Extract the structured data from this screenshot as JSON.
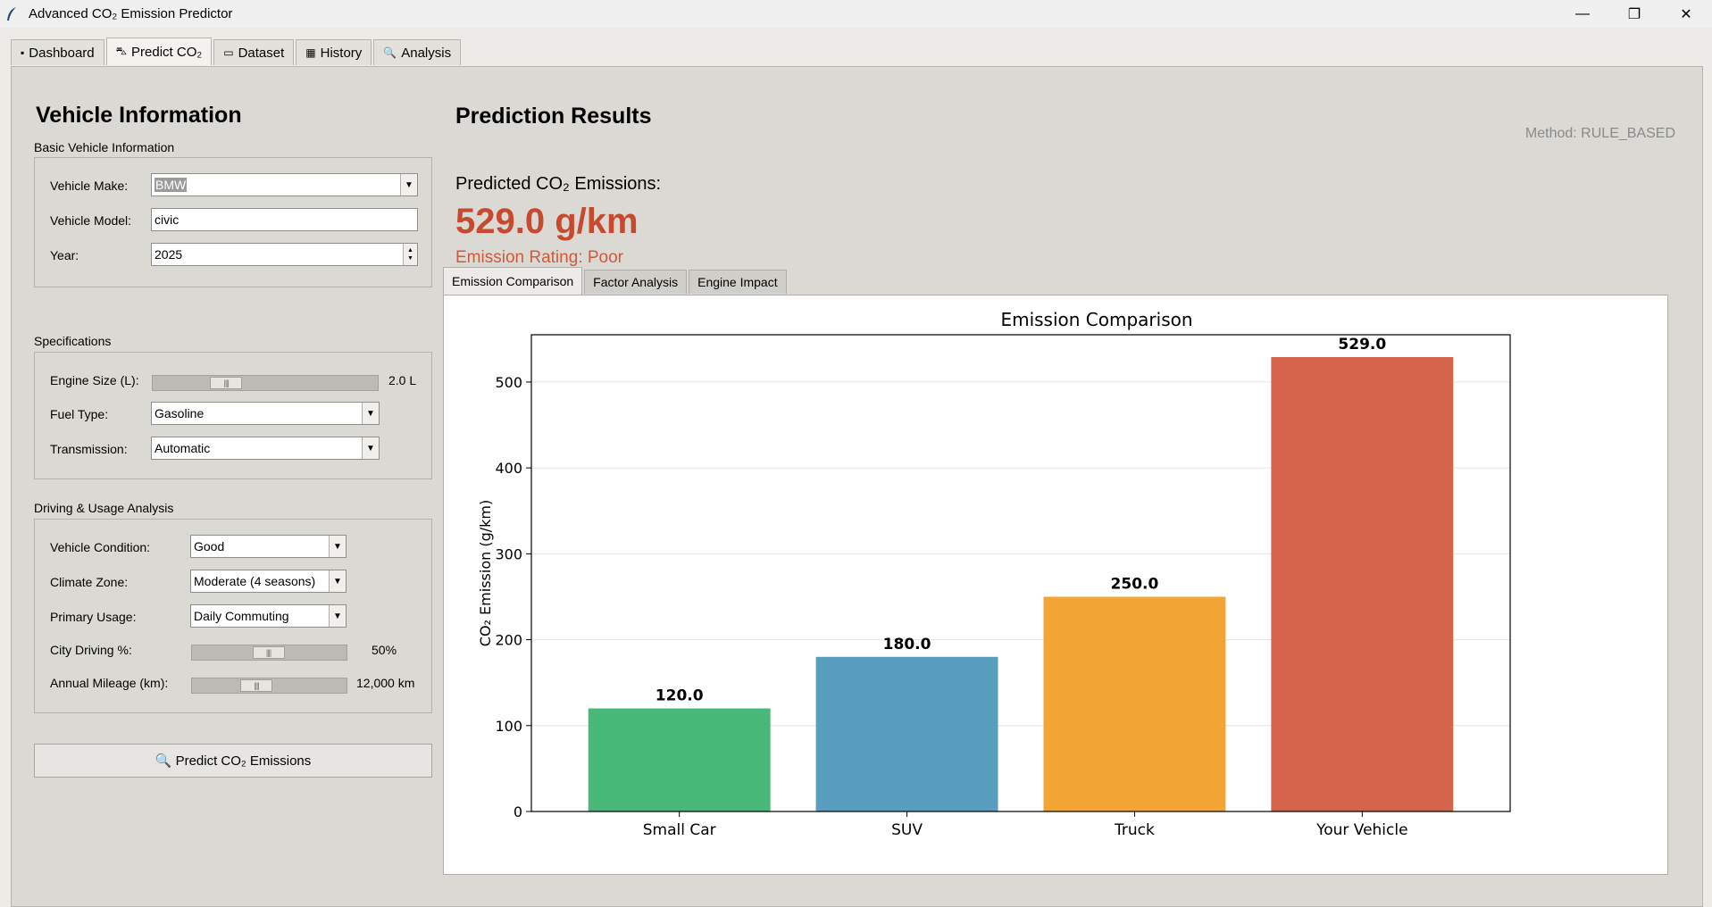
{
  "window": {
    "title": "Advanced CO₂ Emission Predictor",
    "minimize": "—",
    "restore": "❐",
    "close": "✕"
  },
  "main_tabs": [
    {
      "icon": "▪",
      "label": "Dashboard"
    },
    {
      "icon": "⛍",
      "label": "Predict CO₂"
    },
    {
      "icon": "▭",
      "label": "Dataset"
    },
    {
      "icon": "▦",
      "label": "History"
    },
    {
      "icon": "🔍",
      "label": "Analysis"
    }
  ],
  "vehicle_info": {
    "heading": "Vehicle Information",
    "basic": {
      "group_label": "Basic Vehicle Information",
      "make_label": "Vehicle Make:",
      "make_value": "BMW",
      "model_label": "Vehicle Model:",
      "model_value": "civic",
      "year_label": "Year:",
      "year_value": "2025"
    },
    "specs": {
      "group_label": "Specifications",
      "engine_label": "Engine Size (L):",
      "engine_value": "2.0 L",
      "engine_fraction": 0.3,
      "fuel_label": "Fuel Type:",
      "fuel_value": "Gasoline",
      "transmission_label": "Transmission:",
      "transmission_value": "Automatic"
    },
    "driving": {
      "group_label": "Driving & Usage Analysis",
      "condition_label": "Vehicle Condition:",
      "condition_value": "Good",
      "climate_label": "Climate Zone:",
      "climate_value": "Moderate (4 seasons)",
      "usage_label": "Primary Usage:",
      "usage_value": "Daily Commuting",
      "city_label": "City Driving %:",
      "city_value": "50%",
      "city_fraction": 0.5,
      "mileage_label": "Annual Mileage (km):",
      "mileage_value": "12,000 km",
      "mileage_fraction": 0.4
    },
    "predict_button": "🔍 Predict CO₂ Emissions"
  },
  "results": {
    "heading": "Prediction Results",
    "method": "Method: RULE_BASED",
    "predicted_label": "Predicted CO₂ Emissions:",
    "predicted_value": "529.0 g/km",
    "rating": "Emission Rating: Poor",
    "accent_color": "#c74a2e"
  },
  "result_tabs": [
    "Emission Comparison",
    "Factor Analysis",
    "Engine Impact"
  ],
  "chart_data": {
    "type": "bar",
    "title": "Emission Comparison",
    "xlabel": "",
    "ylabel": "CO₂ Emission (g/km)",
    "categories": [
      "Small Car",
      "SUV",
      "Truck",
      "Your Vehicle"
    ],
    "values": [
      120.0,
      180.0,
      250.0,
      529.0
    ],
    "value_labels": [
      "120.0",
      "180.0",
      "250.0",
      "529.0"
    ],
    "colors": [
      "#48b878",
      "#5a9ebf",
      "#f2a534",
      "#d4654a"
    ],
    "ylim": [
      0,
      555
    ],
    "yticks": [
      0,
      100,
      200,
      300,
      400,
      500
    ],
    "grid": true
  }
}
